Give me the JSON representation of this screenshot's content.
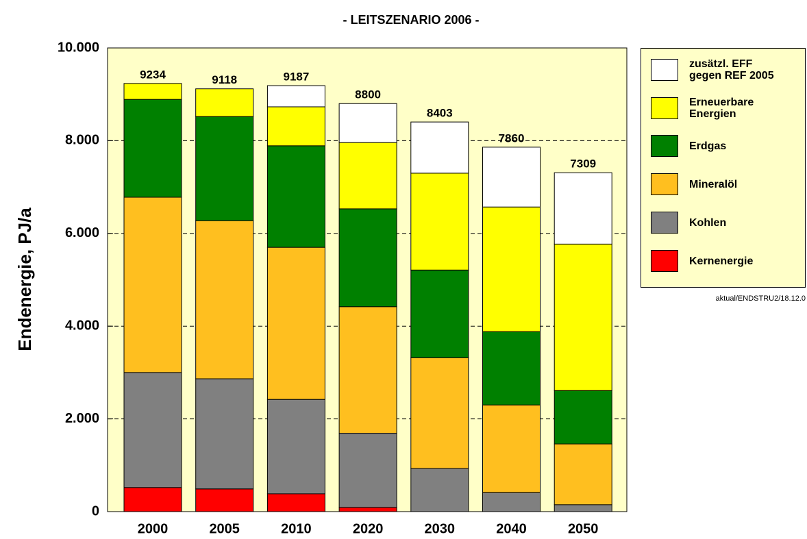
{
  "chart_data": {
    "type": "stacked_bar",
    "title": "- LEITSZENARIO 2006 -",
    "y_label": "Endenergie, PJ/a",
    "footnote": "aktual/ENDSTRU2/18.12.0",
    "categories": [
      "2000",
      "2005",
      "2010",
      "2020",
      "2030",
      "2040",
      "2050"
    ],
    "series": [
      {
        "name": "Kernenergie",
        "color": "#ff0000",
        "values": [
          520,
          490,
          385,
          90,
          0,
          0,
          0
        ]
      },
      {
        "name": "Kohlen",
        "color": "#808080",
        "values": [
          2480,
          2375,
          2035,
          1600,
          930,
          410,
          150
        ]
      },
      {
        "name": "Mineralöl",
        "color": "#ffbf1f",
        "values": [
          3780,
          3410,
          3280,
          2730,
          2390,
          1890,
          1310
        ]
      },
      {
        "name": "Erdgas",
        "color": "#008000",
        "values": [
          2110,
          2245,
          2190,
          2110,
          1890,
          1580,
          1150
        ]
      },
      {
        "name": "Erneuerbare\nEnergien",
        "color": "#ffff00",
        "values": [
          344,
          598,
          840,
          1430,
          2090,
          2690,
          3160
        ]
      },
      {
        "name": "zusätzl. EFF\ngegen REF 2005",
        "color": "#ffffff",
        "values": [
          0,
          0,
          457,
          840,
          1103,
          1290,
          1539
        ]
      }
    ],
    "totals": [
      9234,
      9118,
      9187,
      8800,
      8403,
      7860,
      7309
    ],
    "ylim": [
      0,
      10000
    ],
    "yticks": [
      0,
      {
        "value": 2000,
        "label": "2.000"
      },
      {
        "value": 4000,
        "label": "4.000"
      },
      {
        "value": 6000,
        "label": "6.000"
      },
      {
        "value": 8000,
        "label": "8.000"
      },
      {
        "value": 10000,
        "label": "10.000"
      }
    ],
    "grid": true,
    "legend": "right"
  }
}
